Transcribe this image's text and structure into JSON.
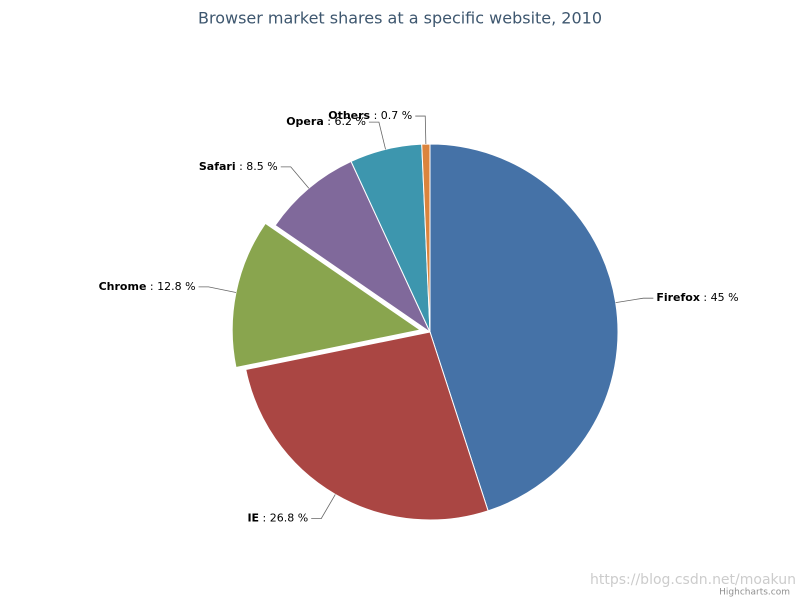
{
  "chart_data": {
    "type": "pie",
    "title": "Browser market shares at a specific website, 2010",
    "categories": [
      "Firefox",
      "IE",
      "Chrome",
      "Safari",
      "Opera",
      "Others"
    ],
    "values": [
      45,
      26.8,
      12.8,
      8.5,
      6.2,
      0.7
    ],
    "value_labels": [
      ": 45 %",
      ": 26.8 %",
      ": 12.8 %",
      ": 8.5 %",
      ": 6.2 %",
      ": 0.7 %"
    ],
    "colors": [
      "#4572a7",
      "#aa4643",
      "#89a54e",
      "#80699b",
      "#3d96ae",
      "#db843d"
    ],
    "sliced": [
      false,
      false,
      true,
      false,
      false,
      false
    ],
    "credits": "Highcharts.com",
    "watermark": "https://blog.csdn.net/moakun"
  }
}
